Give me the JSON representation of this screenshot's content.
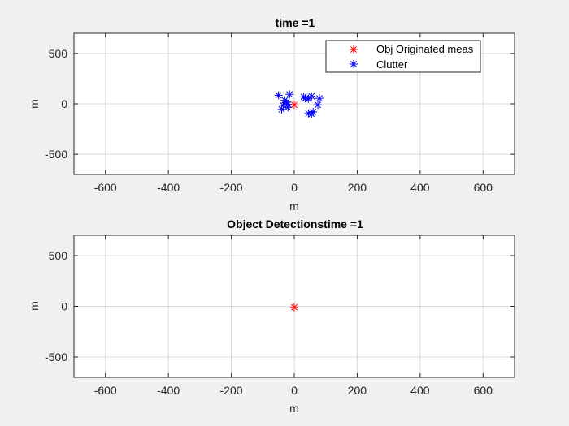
{
  "chart_data": [
    {
      "type": "scatter",
      "title": "time =1",
      "xlabel": "m",
      "ylabel": "m",
      "xlim": [
        -700,
        700
      ],
      "ylim": [
        -700,
        700
      ],
      "xticks": [
        -600,
        -400,
        -200,
        0,
        200,
        400,
        600
      ],
      "yticks": [
        -500,
        0,
        500
      ],
      "grid": true,
      "legend_position": "top-right",
      "series": [
        {
          "name": "Obj Originated meas",
          "color": "#ff0000",
          "marker": "asterisk",
          "x": [
            0
          ],
          "y": [
            -10
          ]
        },
        {
          "name": "Clutter",
          "color": "#0000ff",
          "marker": "asterisk",
          "x": [
            -50,
            -15,
            -30,
            -25,
            -20,
            -35,
            -40,
            -20,
            30,
            35,
            55,
            45,
            80,
            75,
            45,
            55,
            60
          ],
          "y": [
            85,
            95,
            35,
            15,
            -5,
            -15,
            -55,
            -35,
            70,
            55,
            75,
            50,
            55,
            -10,
            -95,
            -100,
            -80
          ]
        }
      ]
    },
    {
      "type": "scatter",
      "title": "Object Detectionstime =1",
      "xlabel": "m",
      "ylabel": "m",
      "xlim": [
        -700,
        700
      ],
      "ylim": [
        -700,
        700
      ],
      "xticks": [
        -600,
        -400,
        -200,
        0,
        200,
        400,
        600
      ],
      "yticks": [
        -500,
        0,
        500
      ],
      "grid": true,
      "series": [
        {
          "color": "#ff0000",
          "marker": "asterisk",
          "x": [
            0
          ],
          "y": [
            -10
          ]
        }
      ]
    }
  ]
}
